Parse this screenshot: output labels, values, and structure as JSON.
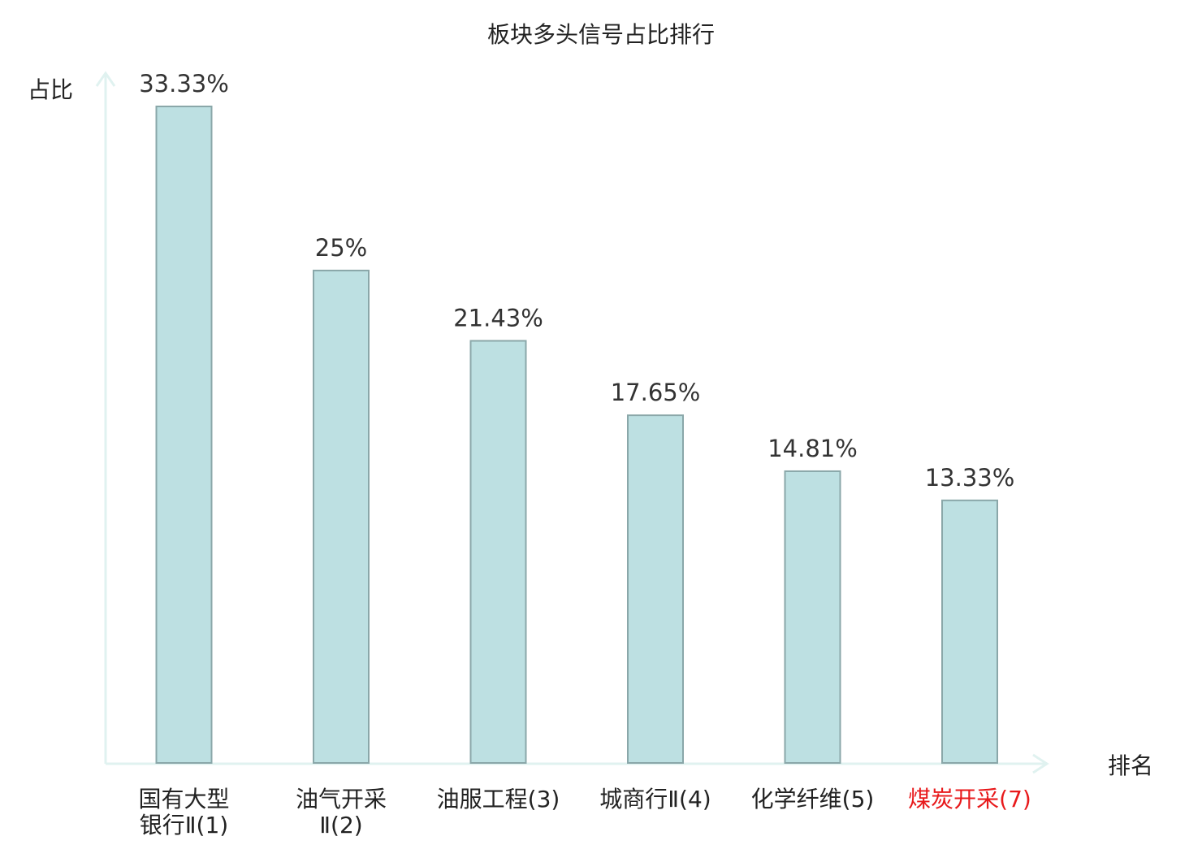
{
  "chart_data": {
    "type": "bar",
    "title": "板块多头信号占比排行",
    "ylabel": "占比",
    "xlabel": "排名",
    "categories": [
      [
        "国有大型",
        "银行Ⅱ(1)"
      ],
      [
        "油气开采",
        "Ⅱ(2)"
      ],
      [
        "油服工程(3)"
      ],
      [
        "城商行Ⅱ(4)"
      ],
      [
        "化学纤维(5)"
      ],
      [
        "煤炭开采(7)"
      ]
    ],
    "values": [
      33.33,
      25,
      21.43,
      17.65,
      14.81,
      13.33
    ],
    "value_labels": [
      "33.33%",
      "25%",
      "21.43%",
      "17.65%",
      "14.81%",
      "13.33%"
    ],
    "ylim": [
      0,
      33.33
    ],
    "grid": false,
    "colors": {
      "bar_fill": "#bde0e2",
      "bar_stroke": "#8aa7a9",
      "axis": "#e0f2f0",
      "label_default": "#222222",
      "label_highlight": "#e8191b"
    },
    "highlight_index": 5
  }
}
